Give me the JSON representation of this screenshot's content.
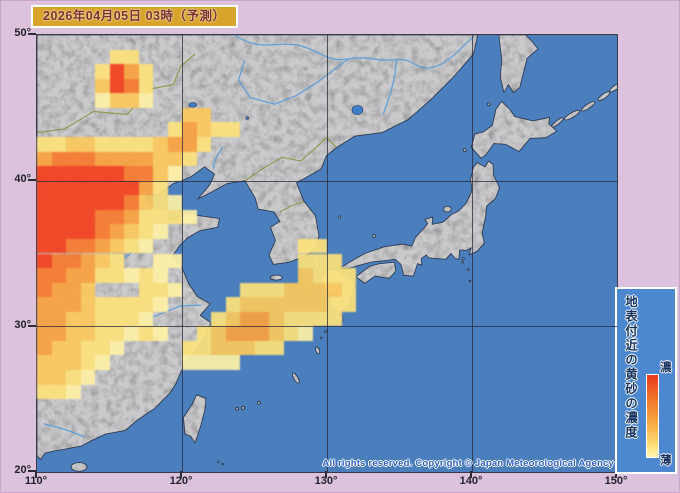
{
  "header": {
    "title": "2026年04月05日 03時（予測）"
  },
  "axes": {
    "lat": [
      "50°",
      "40°",
      "30°",
      "20°"
    ],
    "lon": [
      "110°",
      "120°",
      "130°",
      "140°",
      "150°"
    ]
  },
  "legend": {
    "title_vertical": "地表付近の黄砂の濃度",
    "high_label": "濃",
    "low_label": "薄"
  },
  "footer": {
    "copyright": "All rights reserved. Copyright © Japan Meteorological Agency"
  },
  "colors": {
    "frame_pink": "#DCC2DC",
    "ocean_blue": "#4A7EBC",
    "land_gray": "#CACACC",
    "title_bg": "#D8A42C",
    "title_text": "#7B2F26",
    "legend_bg": "#4C87CF",
    "legend_text": "#17335F",
    "copyright_text": "#2B5EC8",
    "grid_line": "#28283A"
  },
  "chart_data": {
    "type": "heatmap",
    "legend_title": "地表付近の黄砂の濃度",
    "scale_high": "濃",
    "scale_low": "薄",
    "lon_range": [
      110,
      150
    ],
    "lat_range": [
      20,
      50
    ],
    "cell_size_deg": 1,
    "grid_on": true,
    "palette": [
      "none",
      "#FDF0A6",
      "#FCE17C",
      "#FBC85C",
      "#FAA140",
      "#F87A2E",
      "#F4411E"
    ],
    "levels_note": "0=no dust, 6=densest (read from red core NW China, fading yellow toward Kyushu)",
    "grid_rows_north_to_south": [
      "0000000000000000000000000000000000000000",
      "0000022000000000000000000000000000000000",
      "0000264200000000000000000000000000000000",
      "0000365200000000000000000000000000000000",
      "0000133100000000000000000000000000000000",
      "0000000000330000000000000000000000000000",
      "0000000002432200000000000000000000000000",
      "2233222234420000000000000000000000000000",
      "4555444433200000000000000000000000000000",
      "6666665531000000000000000000000000000000",
      "6666666420000000000000000000000000000000",
      "6666665321000000000000000000000000000000",
      "6666554222100000000000000000000000000000",
      "6666543210000000000000000000000000000000",
      "6655432100000000002200000000000000000000",
      "6554320011000000002220000000000000000000",
      "5544221210000000003222000000000000000000",
      "5443000221000022233332000000000000000000",
      "4443222210000233333322000000000000000000",
      "4433222100002344322220000000000000000000",
      "4433221210023444321000000000000000000000",
      "4332210000223332200000000000000000000000",
      "3332100000111100000000000000000000000000",
      "3321000000000000000000000000000000000000",
      "2210000000000000000000000000000000000000",
      "0000000000000000000000000000000000000000",
      "0000000000000000000000000000000000000000",
      "0000000000000000000000000000000000000000",
      "0000000000000000000000000000000000000000",
      "0000000000000000000000000000000000000000"
    ]
  }
}
